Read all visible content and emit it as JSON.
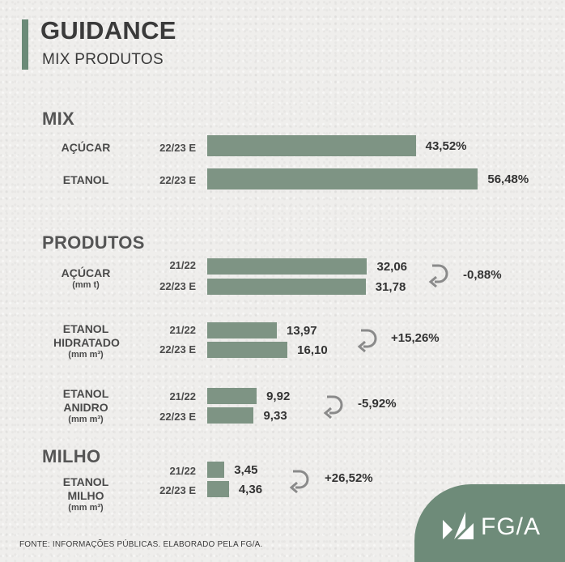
{
  "header": {
    "title": "GUIDANCE",
    "subtitle": "MIX PRODUTOS"
  },
  "footer": "FONTE: INFORMAÇÕES PÚBLICAS. ELABORADO PELA FG/A.",
  "logo": {
    "text": "FG/A"
  },
  "colors": {
    "bar": "#7e9484",
    "accent": "#6b8a78",
    "logo_bg": "#6e8b79"
  },
  "chart_data": {
    "type": "bar",
    "orientation": "horizontal",
    "sections": [
      {
        "title": "MIX",
        "groups": [
          {
            "label": "AÇÚCAR",
            "unit": "",
            "rows": [
              {
                "period": "22/23 E",
                "value": 43.52,
                "label": "43,52%"
              }
            ],
            "change": ""
          },
          {
            "label": "ETANOL",
            "unit": "",
            "rows": [
              {
                "period": "22/23 E",
                "value": 56.48,
                "label": "56,48%"
              }
            ],
            "change": ""
          }
        ]
      },
      {
        "title": "PRODUTOS",
        "groups": [
          {
            "label": "AÇÚCAR",
            "unit": "(mm t)",
            "rows": [
              {
                "period": "21/22",
                "value": 32.06,
                "label": "32,06"
              },
              {
                "period": "22/23 E",
                "value": 31.78,
                "label": "31,78"
              }
            ],
            "change": "-0,88%"
          },
          {
            "label": "ETANOL HIDRATADO",
            "unit": "(mm m³)",
            "rows": [
              {
                "period": "21/22",
                "value": 13.97,
                "label": "13,97"
              },
              {
                "period": "22/23 E",
                "value": 16.1,
                "label": "16,10"
              }
            ],
            "change": "+15,26%"
          },
          {
            "label": "ETANOL ANIDRO",
            "unit": "(mm m³)",
            "rows": [
              {
                "period": "21/22",
                "value": 9.92,
                "label": "9,92"
              },
              {
                "period": "22/23 E",
                "value": 9.33,
                "label": "9,33"
              }
            ],
            "change": "-5,92%"
          }
        ]
      },
      {
        "title": "MILHO",
        "groups": [
          {
            "label": "ETANOL MILHO",
            "unit": "(mm m³)",
            "rows": [
              {
                "period": "21/22",
                "value": 3.45,
                "label": "3,45"
              },
              {
                "period": "22/23 E",
                "value": 4.36,
                "label": "4,36"
              }
            ],
            "change": "+26,52%"
          }
        ]
      }
    ]
  }
}
